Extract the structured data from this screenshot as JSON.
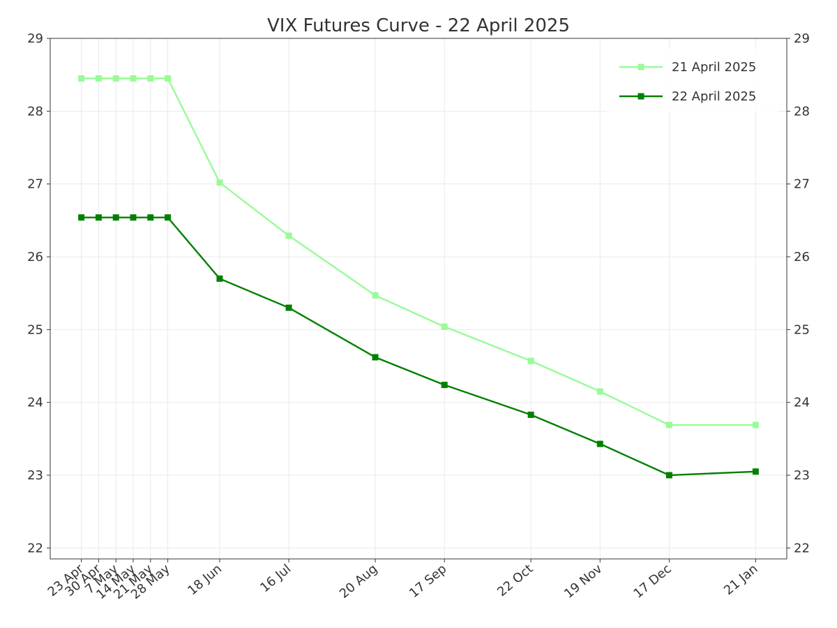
{
  "chart_data": {
    "type": "line",
    "title": "VIX Futures Curve - 22 April 2025",
    "xlabel": "",
    "ylabel": "",
    "x_ticks": [
      {
        "label": "23 Apr",
        "day": 0
      },
      {
        "label": "30 Apr",
        "day": 7
      },
      {
        "label": "7 May",
        "day": 14
      },
      {
        "label": "14 May",
        "day": 21
      },
      {
        "label": "21 May",
        "day": 28
      },
      {
        "label": "28 May",
        "day": 35
      },
      {
        "label": "18 Jun",
        "day": 56
      },
      {
        "label": "16 Jul",
        "day": 84
      },
      {
        "label": "20 Aug",
        "day": 119
      },
      {
        "label": "17 Sep",
        "day": 147
      },
      {
        "label": "22 Oct",
        "day": 182
      },
      {
        "label": "19 Nov",
        "day": 210
      },
      {
        "label": "17 Dec",
        "day": 238
      },
      {
        "label": "21 Jan",
        "day": 273
      }
    ],
    "ylim": [
      21.85,
      29.0
    ],
    "y_ticks": [
      22,
      23,
      24,
      25,
      26,
      27,
      28,
      29
    ],
    "grid": true,
    "legend_position": "top-right",
    "series": [
      {
        "name": "21 April 2025",
        "color": "#98fb98",
        "marker": "square",
        "values": [
          28.45,
          28.45,
          28.45,
          28.45,
          28.45,
          28.45,
          27.02,
          26.29,
          25.47,
          25.04,
          24.57,
          24.15,
          23.69,
          23.69
        ]
      },
      {
        "name": "22 April 2025",
        "color": "#008000",
        "marker": "square",
        "values": [
          26.54,
          26.54,
          26.54,
          26.54,
          26.54,
          26.54,
          25.7,
          25.3,
          24.62,
          24.24,
          23.83,
          23.43,
          23.0,
          23.05
        ]
      }
    ]
  }
}
